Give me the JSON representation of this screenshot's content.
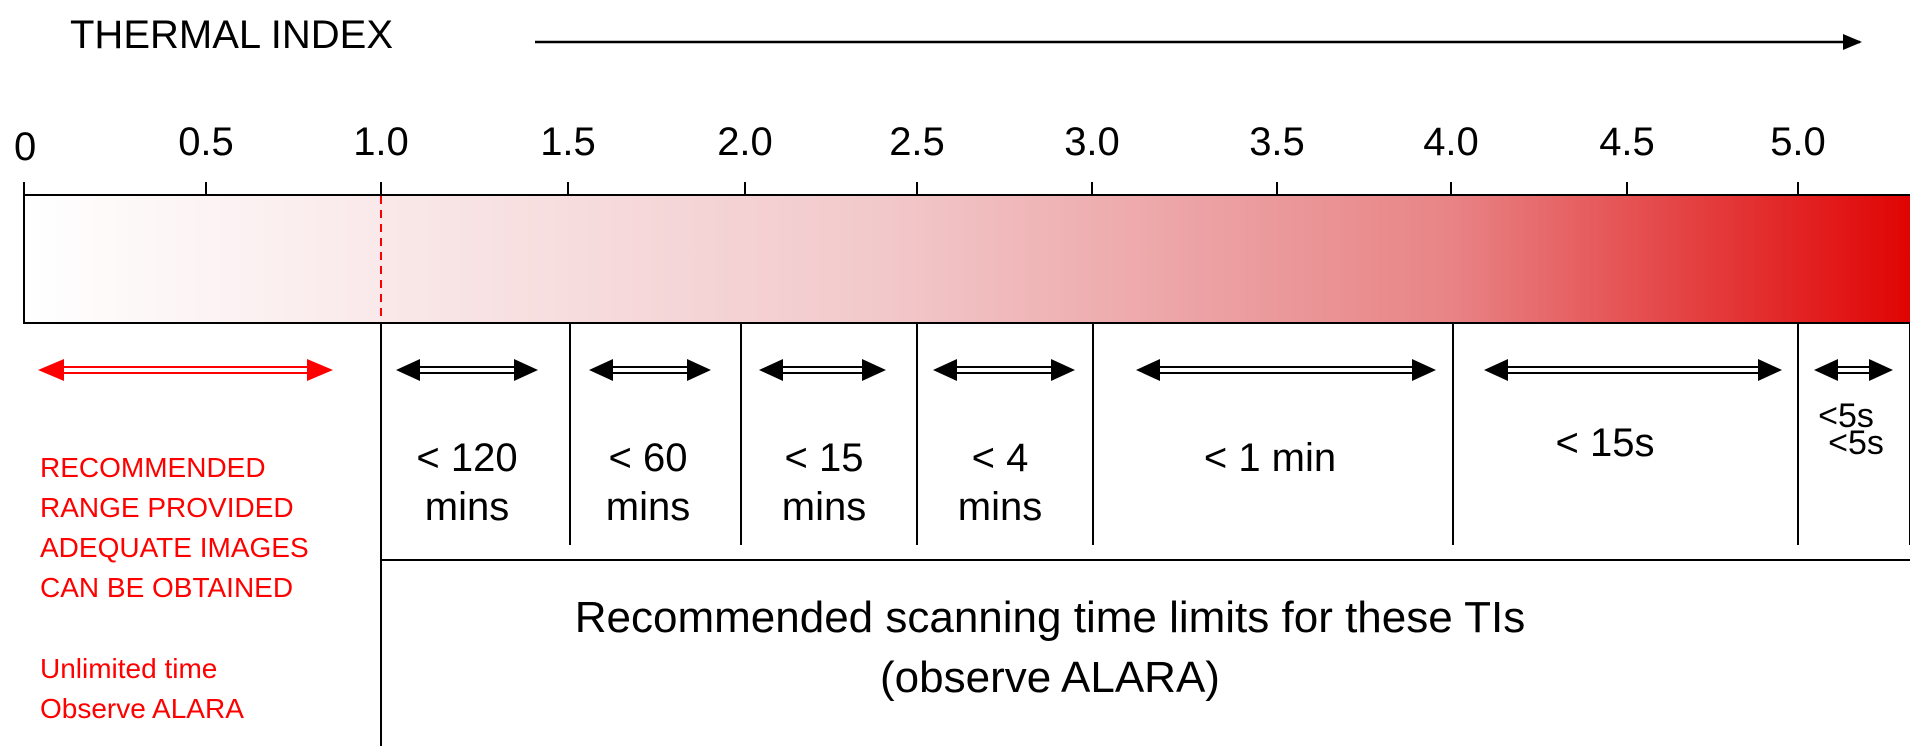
{
  "header": {
    "title": "THERMAL INDEX"
  },
  "scale": {
    "ticks": [
      "0",
      "0.5",
      "1.0",
      "1.5",
      "2.0",
      "2.5",
      "3.0",
      "3.5",
      "4.0",
      "4.5",
      "5.0"
    ]
  },
  "gradient": {
    "start_color": "#ffffff",
    "end_color": "#e00000"
  },
  "left_note": {
    "color": "#ff0000",
    "range_lines": [
      "RECOMMENDED",
      "RANGE PROVIDED",
      "ADEQUATE IMAGES",
      "CAN BE OBTAINED"
    ],
    "time_lines": [
      "Unlimited time",
      "Observe ALARA"
    ]
  },
  "intervals": [
    {
      "lines": [
        "< 120",
        "mins"
      ]
    },
    {
      "lines": [
        "< 60",
        "mins"
      ]
    },
    {
      "lines": [
        "< 15",
        "mins"
      ]
    },
    {
      "lines": [
        "< 4",
        "mins"
      ]
    },
    {
      "lines": [
        "< 1 min"
      ]
    },
    {
      "lines": [
        "< 15s"
      ]
    },
    {
      "lines": [
        "<5s",
        "<5s"
      ]
    }
  ],
  "footer": {
    "line1": "Recommended scanning time limits for these TIs",
    "line2": "(observe ALARA)"
  }
}
